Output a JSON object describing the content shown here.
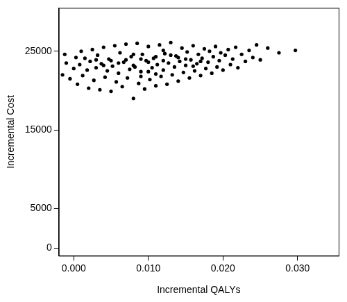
{
  "chart_data": {
    "type": "scatter",
    "x_label": "Incremental QALYs",
    "y_label": "Incremental Cost",
    "color": "#000000",
    "marker": "circle",
    "grid": false,
    "xlim": [
      -0.002,
      0.0355
    ],
    "ylim": [
      -1000,
      30500
    ],
    "xticks": [
      {
        "value": 0,
        "label": "0.000"
      },
      {
        "value": 0.01,
        "label": "0.010"
      },
      {
        "value": 0.02,
        "label": "0.020"
      },
      {
        "value": 0.03,
        "label": "0.030"
      }
    ],
    "yticks": [
      0,
      5000,
      15000,
      25000
    ],
    "x": [
      -0.0015,
      -0.001,
      -0.0012,
      -0.0005,
      0,
      0.0003,
      0.0005,
      0.0008,
      0.001,
      0.0012,
      0.0015,
      0.0018,
      0.002,
      0.0022,
      0.0025,
      0.0027,
      0.003,
      0.0032,
      0.0035,
      0.0037,
      0.004,
      0.0042,
      0.0045,
      0.0047,
      0.005,
      0.0052,
      0.0055,
      0.0057,
      0.006,
      0.0062,
      0.0065,
      0.0067,
      0.007,
      0.0072,
      0.0075,
      0.0077,
      0.008,
      0.0082,
      0.0085,
      0.0087,
      0.009,
      0.0092,
      0.0095,
      0.0097,
      0.01,
      0.0102,
      0.0105,
      0.0107,
      0.011,
      0.0112,
      0.0115,
      0.0117,
      0.012,
      0.0122,
      0.0125,
      0.0127,
      0.013,
      0.0132,
      0.0135,
      0.0137,
      0.014,
      0.0142,
      0.0145,
      0.0147,
      0.015,
      0.0152,
      0.0155,
      0.0157,
      0.016,
      0.0162,
      0.0165,
      0.0167,
      0.017,
      0.0172,
      0.0175,
      0.0177,
      0.018,
      0.0182,
      0.0185,
      0.0187,
      0.019,
      0.0192,
      0.0195,
      0.0197,
      0.02,
      0.0203,
      0.0207,
      0.021,
      0.0213,
      0.0217,
      0.022,
      0.0225,
      0.023,
      0.0235,
      0.024,
      0.0245,
      0.025,
      0.026,
      0.0275,
      0.0297,
      0.006,
      0.007,
      0.008,
      0.009,
      0.01,
      0.011,
      0.012,
      0.013,
      0.008,
      0.01,
      0.012,
      0.014,
      0.005,
      0.004,
      0.003,
      0.015,
      0.016,
      0.017,
      0.009,
      0.011
    ],
    "values": [
      22000,
      23500,
      24600,
      21500,
      22800,
      24200,
      20800,
      23300,
      25000,
      21900,
      24100,
      22600,
      20300,
      23700,
      25200,
      21300,
      22900,
      24500,
      20100,
      23400,
      25500,
      21700,
      22500,
      24000,
      19900,
      23100,
      25700,
      21100,
      22200,
      24800,
      20500,
      23600,
      25900,
      21600,
      22700,
      24300,
      19000,
      23000,
      26000,
      20900,
      22400,
      24600,
      20200,
      23800,
      25600,
      21400,
      22900,
      24100,
      20600,
      23300,
      25800,
      21800,
      22600,
      24700,
      20800,
      23500,
      26100,
      22000,
      23000,
      24400,
      21200,
      23700,
      25400,
      22300,
      23200,
      24900,
      21600,
      23900,
      25700,
      22500,
      23400,
      24600,
      21900,
      24100,
      25300,
      22800,
      23600,
      25000,
      22200,
      24300,
      25600,
      23000,
      23800,
      24800,
      22600,
      24500,
      25200,
      23300,
      24000,
      25500,
      22900,
      24600,
      23700,
      25100,
      24200,
      25800,
      23900,
      25400,
      24800,
      25100,
      23500,
      23900,
      23200,
      24000,
      23600,
      24300,
      23800,
      24500,
      24600,
      22400,
      25100,
      24200,
      23800,
      23200,
      23900,
      24000,
      23100,
      23700,
      21800,
      22100
    ]
  }
}
